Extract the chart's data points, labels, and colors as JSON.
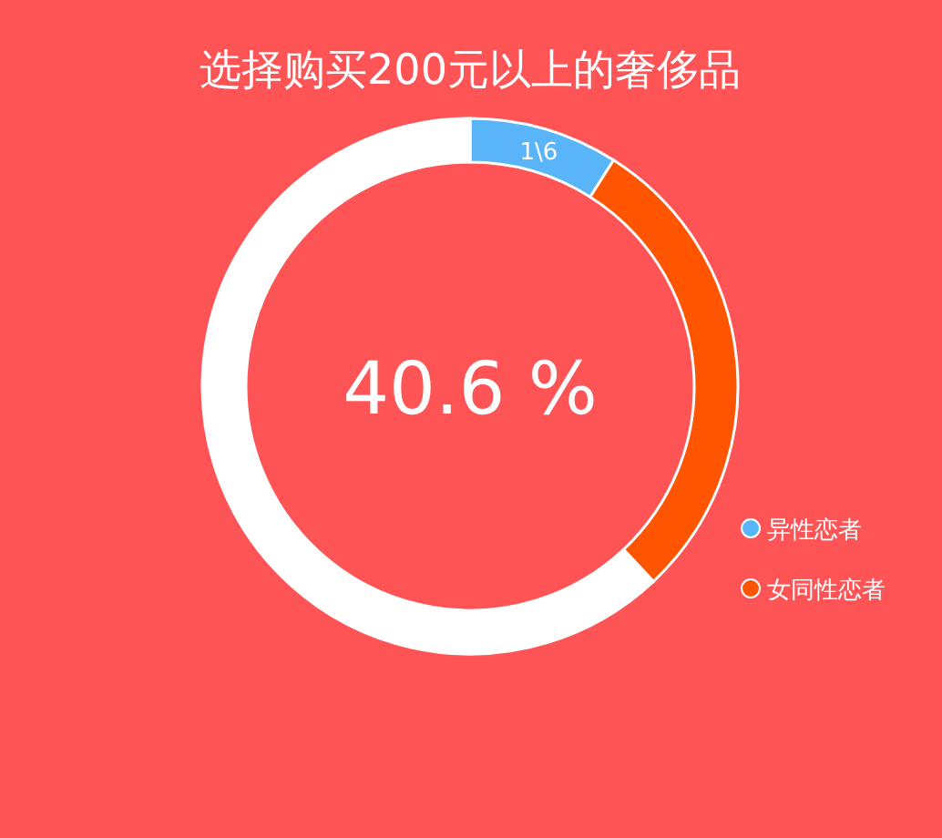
{
  "chart_data": {
    "type": "donut",
    "title": "选择购买200元以上的奢侈品",
    "categories": [
      "异性恋者",
      "女同性恋者",
      null
    ],
    "values": [
      9,
      29,
      62
    ],
    "colors": [
      "#5ab4f8",
      "#ff5500",
      "#ffffff"
    ],
    "annotations": [
      "40.6 %",
      {
        "text": "1\\6",
        "x": "异性恋者"
      }
    ],
    "legend": "bottom right"
  }
}
